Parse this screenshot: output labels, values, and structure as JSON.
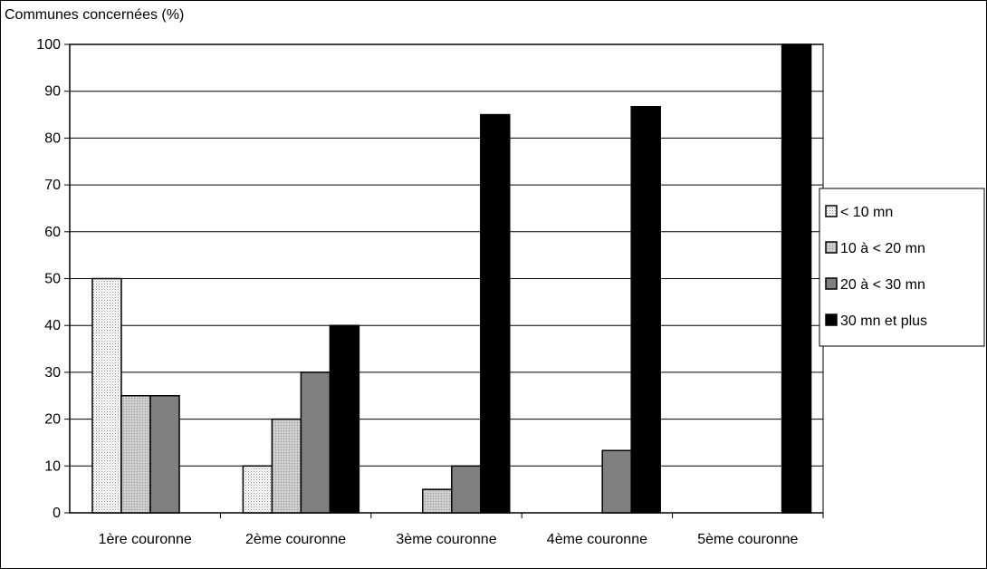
{
  "chart_data": {
    "type": "bar",
    "ylabel": "Communes concernées (%)",
    "ylim": [
      0,
      100
    ],
    "yticks": [
      0,
      10,
      20,
      30,
      40,
      50,
      60,
      70,
      80,
      90,
      100
    ],
    "grid": true,
    "legend_position": "right",
    "categories": [
      "1ère couronne",
      "2ème couronne",
      "3ème couronne",
      "4ème couronne",
      "5ème couronne"
    ],
    "series": [
      {
        "name": "< 10 mn",
        "values": [
          50,
          10,
          0,
          0,
          0
        ],
        "color": "#f0f0f0",
        "pattern": "dotted"
      },
      {
        "name": "10 à < 20 mn",
        "values": [
          25,
          20,
          5,
          0,
          0
        ],
        "color": "#c0c0c0",
        "pattern": "dotted"
      },
      {
        "name": "20 à < 30 mn",
        "values": [
          25,
          30,
          10,
          13.3,
          0
        ],
        "color": "#808080"
      },
      {
        "name": "30 mn et plus",
        "values": [
          0,
          40,
          85,
          86.7,
          100
        ],
        "color": "#000000"
      }
    ]
  }
}
